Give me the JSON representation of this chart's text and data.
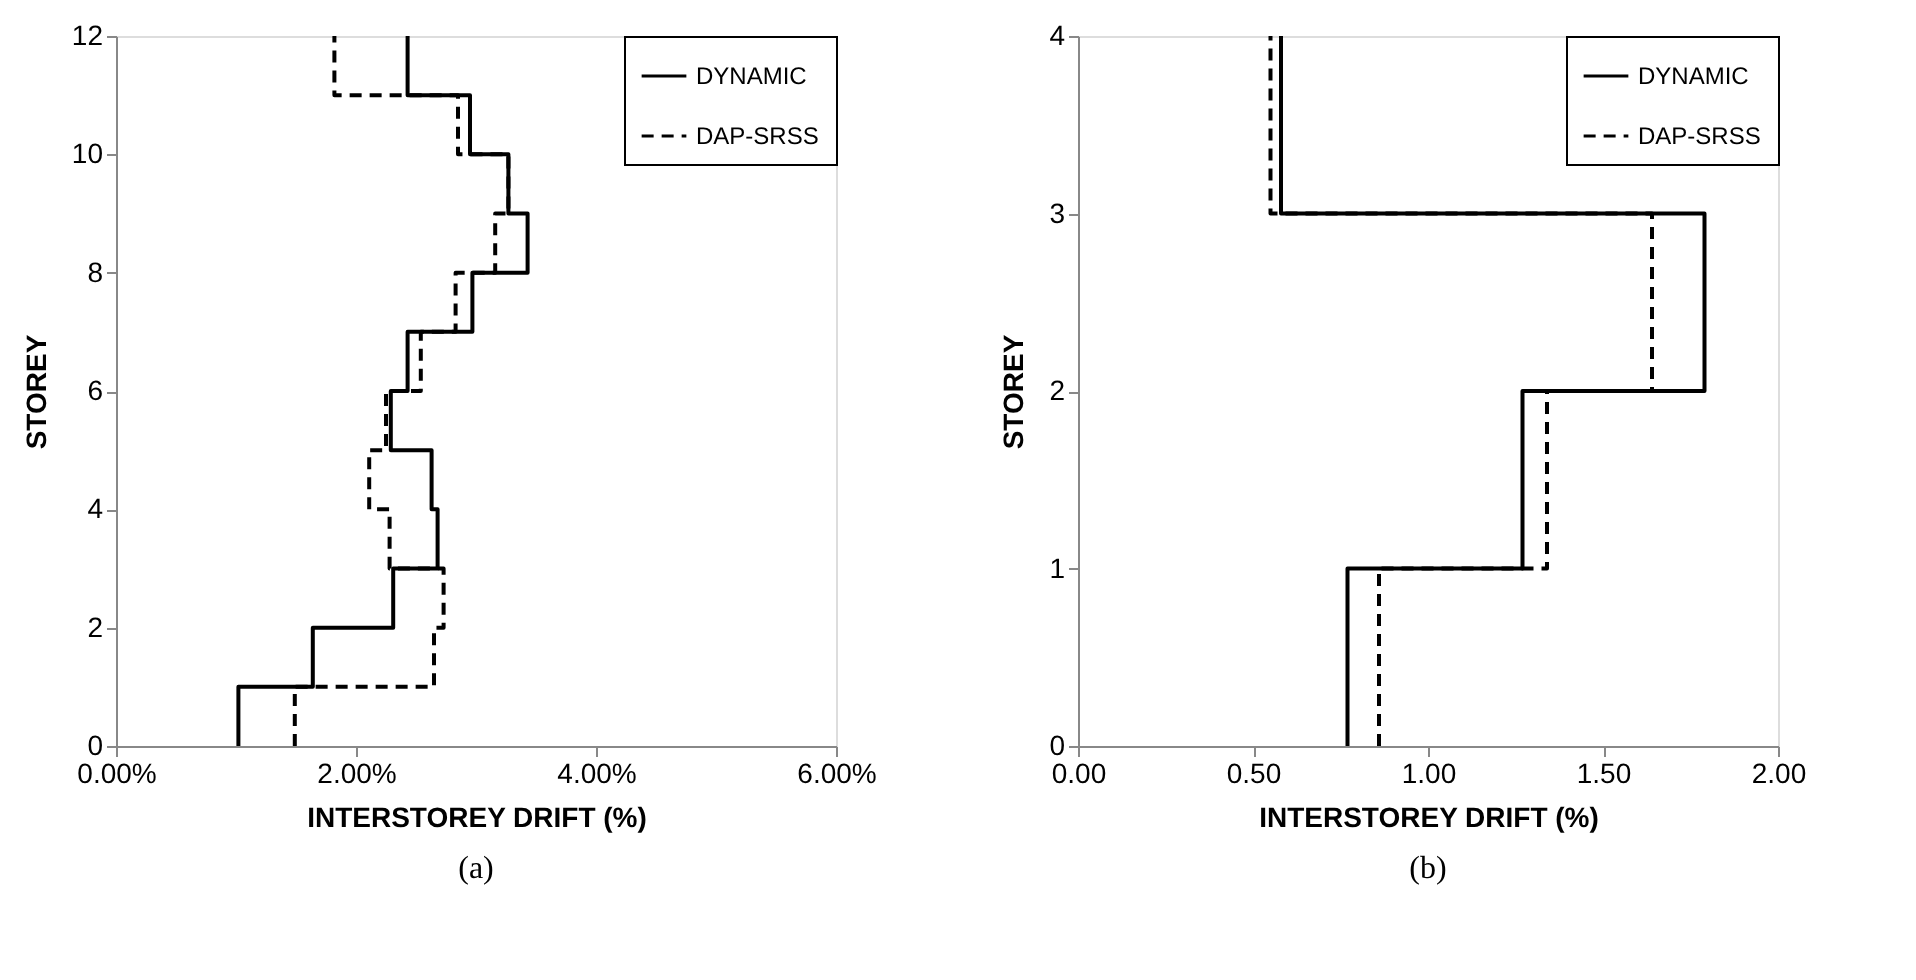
{
  "chart_data": [
    {
      "type": "step",
      "orientation": "horizontal",
      "xlabel": "INTERSTOREY DRIFT (%)",
      "ylabel": "STOREY",
      "annotations": [
        "(a)"
      ],
      "legend": "top right",
      "x": [
        0,
        1,
        2,
        3,
        4,
        5,
        6,
        7,
        8,
        9,
        10,
        11,
        12
      ],
      "series": [
        {
          "name": "DYNAMIC",
          "color": "#000000",
          "line_style": "solid",
          "values": [
            1.02,
            1.64,
            2.31,
            2.68,
            2.63,
            2.29,
            2.43,
            2.97,
            3.43,
            3.27,
            2.95,
            2.43,
            2.43
          ]
        },
        {
          "name": "DAP-SRSS",
          "color": "#000000",
          "line_style": "dashed",
          "values": [
            1.49,
            2.65,
            2.73,
            2.28,
            2.11,
            2.25,
            2.54,
            2.83,
            3.16,
            3.27,
            2.85,
            1.82,
            1.82
          ]
        }
      ],
      "xlim": [
        0,
        6
      ],
      "xticks": [
        {
          "value": 0,
          "label": "0.00%"
        },
        {
          "value": 2,
          "label": "2.00%"
        },
        {
          "value": 4,
          "label": "4.00%"
        },
        {
          "value": 6,
          "label": "6.00%"
        }
      ],
      "ylim": [
        0,
        12
      ],
      "yticks": [
        0,
        2,
        4,
        6,
        8,
        10,
        12
      ]
    },
    {
      "type": "step",
      "orientation": "horizontal",
      "xlabel": "INTERSTOREY DRIFT (%)",
      "ylabel": "STOREY",
      "annotations": [
        "(b)"
      ],
      "legend": "top right",
      "x": [
        0,
        1,
        2,
        3,
        4
      ],
      "series": [
        {
          "name": "DYNAMIC",
          "color": "#000000",
          "line_style": "solid",
          "values": [
            0.77,
            1.27,
            1.79,
            0.58,
            0.58
          ]
        },
        {
          "name": "DAP-SRSS",
          "color": "#000000",
          "line_style": "dashed",
          "values": [
            0.86,
            1.34,
            1.64,
            0.55,
            0.55
          ]
        }
      ],
      "xlim": [
        0,
        2
      ],
      "xticks": [
        {
          "value": 0,
          "label": "0.00"
        },
        {
          "value": 0.5,
          "label": "0.50"
        },
        {
          "value": 1,
          "label": "1.00"
        },
        {
          "value": 1.5,
          "label": "1.50"
        },
        {
          "value": 2,
          "label": "2.00"
        }
      ],
      "ylim": [
        0,
        4
      ],
      "yticks": [
        0,
        1,
        2,
        3,
        4
      ]
    }
  ]
}
